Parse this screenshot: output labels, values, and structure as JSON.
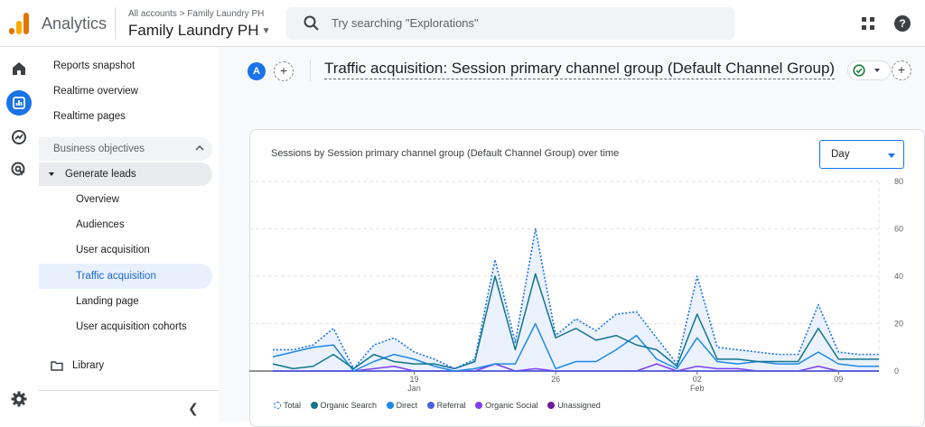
{
  "header": {
    "app_name": "Analytics",
    "breadcrumb": "All accounts > Family Laundry PH",
    "property": "Family Laundry PH",
    "search_placeholder": "Try searching \"Explorations\""
  },
  "sidebar": {
    "top_items": [
      "Reports snapshot",
      "Realtime overview",
      "Realtime pages"
    ],
    "section": "Business objectives",
    "group": "Generate leads",
    "sub_items": [
      "Overview",
      "Audiences",
      "User acquisition",
      "Traffic acquisition",
      "Landing page",
      "User acquisition cohorts"
    ],
    "active_item": "Traffic acquisition",
    "library": "Library"
  },
  "report": {
    "avatar_letter": "A",
    "plus": "+",
    "title": "Traffic acquisition: Session primary channel group (Default Channel Group)"
  },
  "colors": {
    "accent": "#1a73e8",
    "total": "#1a73e8",
    "organic_search": "#12748a",
    "direct": "#1e88e5",
    "referral": "#4c5fe0",
    "organic_social": "#7e3ff2",
    "unassigned": "#6a1b9a"
  },
  "chart_data": {
    "type": "line",
    "title": "Sessions by Session primary channel group (Default Channel Group) over time",
    "interval_selector": "Day",
    "y_ticks": [
      "80",
      "60",
      "40",
      "20",
      "0"
    ],
    "ylim": [
      0,
      80
    ],
    "x_tick_labels": [
      {
        "label": "19",
        "sub": "Jan",
        "day_index": 7
      },
      {
        "label": "26",
        "sub": "",
        "day_index": 14
      },
      {
        "label": "02",
        "sub": "Feb",
        "day_index": 21
      },
      {
        "label": "09",
        "sub": "",
        "day_index": 28
      }
    ],
    "series": [
      {
        "name": "Total",
        "key": "total",
        "values": [
          9,
          9,
          11,
          18,
          1,
          11,
          14,
          8,
          5,
          1,
          5,
          47,
          12,
          60,
          15,
          22,
          17,
          24,
          25,
          14,
          3,
          40,
          10,
          9,
          8,
          7,
          7,
          28,
          8,
          7,
          7
        ]
      },
      {
        "name": "Organic Search",
        "key": "organic_search",
        "values": [
          3,
          1,
          2,
          7,
          1,
          7,
          4,
          3,
          3,
          1,
          4,
          40,
          9,
          41,
          14,
          18,
          13,
          15,
          11,
          9,
          2,
          24,
          5,
          5,
          4,
          4,
          4,
          18,
          5,
          5,
          5
        ]
      },
      {
        "name": "Direct",
        "key": "direct",
        "values": [
          6,
          8,
          10,
          11,
          0,
          4,
          7,
          5,
          2,
          0,
          1,
          3,
          3,
          20,
          1,
          4,
          4,
          9,
          15,
          5,
          1,
          14,
          4,
          3,
          4,
          3,
          3,
          8,
          3,
          2,
          2
        ]
      },
      {
        "name": "Referral",
        "key": "referral",
        "values": [
          0,
          0,
          0,
          0,
          0,
          0,
          0,
          0,
          0,
          0,
          0,
          0,
          0,
          0,
          0,
          0,
          0,
          0,
          0,
          0,
          0,
          0,
          0,
          0,
          0,
          0,
          0,
          0,
          0,
          0,
          0
        ]
      },
      {
        "name": "Organic Social",
        "key": "organic_social",
        "values": [
          0,
          0,
          0,
          0,
          0,
          1,
          2,
          0,
          0,
          0,
          0,
          3,
          0,
          1,
          0,
          0,
          0,
          0,
          0,
          3,
          0,
          2,
          1,
          1,
          0,
          0,
          0,
          2,
          0,
          0,
          0
        ]
      },
      {
        "name": "Unassigned",
        "key": "unassigned",
        "values": [
          0,
          0,
          0,
          0,
          0,
          0,
          0,
          0,
          0,
          0,
          0,
          0,
          0,
          0,
          0,
          0,
          0,
          0,
          0,
          0,
          0,
          0,
          0,
          0,
          0,
          0,
          0,
          0,
          0,
          0,
          0
        ]
      }
    ]
  }
}
